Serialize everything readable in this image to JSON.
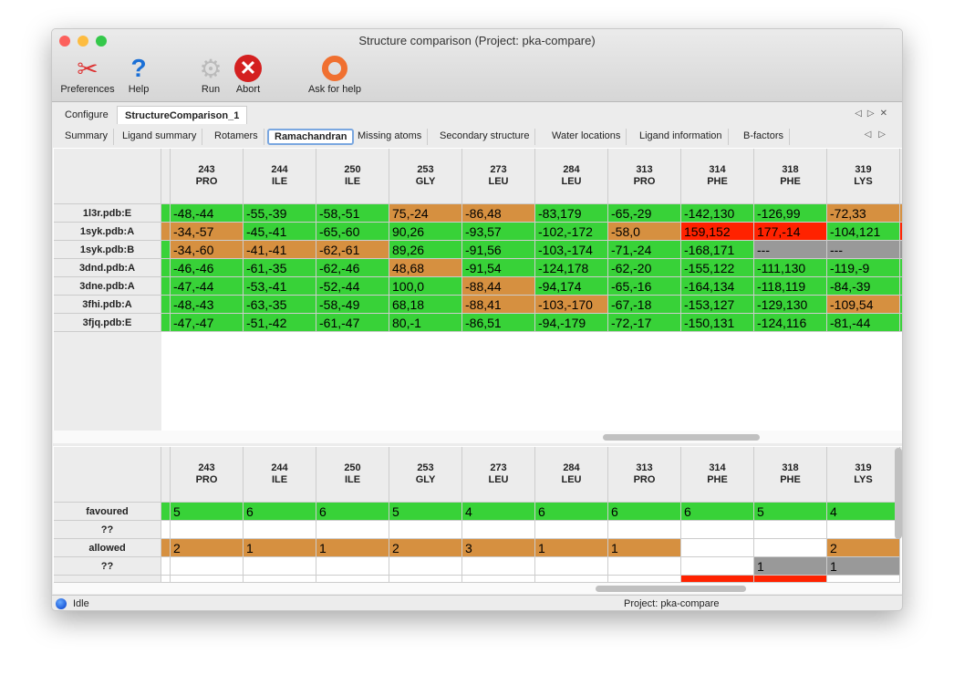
{
  "window": {
    "title": "Structure comparison (Project: pka-compare)"
  },
  "toolbar": [
    {
      "label": "Preferences",
      "icon": "tools-icon"
    },
    {
      "label": "Help",
      "icon": "help-icon"
    },
    {
      "label": "Run",
      "icon": "gear-icon"
    },
    {
      "label": "Abort",
      "icon": "abort-icon"
    },
    {
      "label": "Ask for help",
      "icon": "lifebuoy-icon"
    }
  ],
  "tabs": [
    "Configure",
    "StructureComparison_1"
  ],
  "active_tab": "StructureComparison_1",
  "subtabs": [
    "Summary",
    "Ligand summary",
    "Rotamers",
    "Ramachandran",
    "Missing atoms",
    "Secondary structure",
    "Water locations",
    "Ligand information",
    "B-factors"
  ],
  "active_subtab": "Ramachandran",
  "colors": {
    "favoured": "#38d238",
    "allowed": "#d69040",
    "outlier": "#ff2200",
    "missing": "#999999"
  },
  "columns": [
    {
      "num": "243",
      "res": "PRO"
    },
    {
      "num": "244",
      "res": "ILE"
    },
    {
      "num": "250",
      "res": "ILE"
    },
    {
      "num": "253",
      "res": "GLY"
    },
    {
      "num": "273",
      "res": "LEU"
    },
    {
      "num": "284",
      "res": "LEU"
    },
    {
      "num": "313",
      "res": "PRO"
    },
    {
      "num": "314",
      "res": "PHE"
    },
    {
      "num": "318",
      "res": "PHE"
    },
    {
      "num": "319",
      "res": "LYS"
    }
  ],
  "rows": [
    {
      "name": "1l3r.pdb:E",
      "ind": "g",
      "cells": [
        [
          "-48,-44",
          "g"
        ],
        [
          "-55,-39",
          "g"
        ],
        [
          "-58,-51",
          "g"
        ],
        [
          "75,-24",
          "o"
        ],
        [
          "-86,48",
          "o"
        ],
        [
          "-83,179",
          "g"
        ],
        [
          "-65,-29",
          "g"
        ],
        [
          "-142,130",
          "g"
        ],
        [
          "-126,99",
          "g"
        ],
        [
          "-72,33",
          "o"
        ]
      ],
      "tail": "o"
    },
    {
      "name": "1syk.pdb:A",
      "ind": "o",
      "cells": [
        [
          "-34,-57",
          "o"
        ],
        [
          "-45,-41",
          "g"
        ],
        [
          "-65,-60",
          "g"
        ],
        [
          "90,26",
          "g"
        ],
        [
          "-93,57",
          "g"
        ],
        [
          "-102,-172",
          "g"
        ],
        [
          "-58,0",
          "o"
        ],
        [
          "159,152",
          "r"
        ],
        [
          "177,-14",
          "r"
        ],
        [
          "-104,121",
          "g"
        ]
      ],
      "tail": "r"
    },
    {
      "name": "1syk.pdb:B",
      "ind": "g",
      "cells": [
        [
          "-34,-60",
          "o"
        ],
        [
          "-41,-41",
          "o"
        ],
        [
          "-62,-61",
          "o"
        ],
        [
          "89,26",
          "g"
        ],
        [
          "-91,56",
          "g"
        ],
        [
          "-103,-174",
          "g"
        ],
        [
          "-71,-24",
          "g"
        ],
        [
          "-168,171",
          "g"
        ],
        [
          "---",
          "gy"
        ],
        [
          "---",
          "gy"
        ]
      ],
      "tail": "gy"
    },
    {
      "name": "3dnd.pdb:A",
      "ind": "g",
      "cells": [
        [
          "-46,-46",
          "g"
        ],
        [
          "-61,-35",
          "g"
        ],
        [
          "-62,-46",
          "g"
        ],
        [
          "48,68",
          "o"
        ],
        [
          "-91,54",
          "g"
        ],
        [
          "-124,178",
          "g"
        ],
        [
          "-62,-20",
          "g"
        ],
        [
          "-155,122",
          "g"
        ],
        [
          "-111,130",
          "g"
        ],
        [
          "-119,-9",
          "g"
        ]
      ],
      "tail": "g"
    },
    {
      "name": "3dne.pdb:A",
      "ind": "g",
      "cells": [
        [
          "-47,-44",
          "g"
        ],
        [
          "-53,-41",
          "g"
        ],
        [
          "-52,-44",
          "g"
        ],
        [
          "100,0",
          "g"
        ],
        [
          "-88,44",
          "o"
        ],
        [
          "-94,174",
          "g"
        ],
        [
          "-65,-16",
          "g"
        ],
        [
          "-164,134",
          "g"
        ],
        [
          "-118,119",
          "g"
        ],
        [
          "-84,-39",
          "g"
        ]
      ],
      "tail": "g"
    },
    {
      "name": "3fhi.pdb:A",
      "ind": "g",
      "cells": [
        [
          "-48,-43",
          "g"
        ],
        [
          "-63,-35",
          "g"
        ],
        [
          "-58,-49",
          "g"
        ],
        [
          "68,18",
          "g"
        ],
        [
          "-88,41",
          "o"
        ],
        [
          "-103,-170",
          "o"
        ],
        [
          "-67,-18",
          "g"
        ],
        [
          "-153,127",
          "g"
        ],
        [
          "-129,130",
          "g"
        ],
        [
          "-109,54",
          "o"
        ]
      ],
      "tail": "g"
    },
    {
      "name": "3fjq.pdb:E",
      "ind": "g",
      "cells": [
        [
          "-47,-47",
          "g"
        ],
        [
          "-51,-42",
          "g"
        ],
        [
          "-61,-47",
          "g"
        ],
        [
          "80,-1",
          "g"
        ],
        [
          "-86,51",
          "g"
        ],
        [
          "-94,-179",
          "g"
        ],
        [
          "-72,-17",
          "g"
        ],
        [
          "-150,131",
          "g"
        ],
        [
          "-124,116",
          "g"
        ],
        [
          "-81,-44",
          "g"
        ]
      ],
      "tail": "g"
    }
  ],
  "summary_rows": [
    {
      "name": "favoured",
      "ind": "g",
      "cells": [
        [
          "5",
          "g"
        ],
        [
          "6",
          "g"
        ],
        [
          "6",
          "g"
        ],
        [
          "5",
          "g"
        ],
        [
          "4",
          "g"
        ],
        [
          "6",
          "g"
        ],
        [
          "6",
          "g"
        ],
        [
          "6",
          "g"
        ],
        [
          "5",
          "g"
        ],
        [
          "4",
          "g"
        ]
      ]
    },
    {
      "name": "??",
      "ind": "w",
      "cells": [
        [
          "",
          "w"
        ],
        [
          "",
          "w"
        ],
        [
          "",
          "w"
        ],
        [
          "",
          "w"
        ],
        [
          "",
          "w"
        ],
        [
          "",
          "w"
        ],
        [
          "",
          "w"
        ],
        [
          "",
          "w"
        ],
        [
          "",
          "w"
        ],
        [
          "",
          "w"
        ]
      ]
    },
    {
      "name": "allowed",
      "ind": "o",
      "cells": [
        [
          "2",
          "o"
        ],
        [
          "1",
          "o"
        ],
        [
          "1",
          "o"
        ],
        [
          "2",
          "o"
        ],
        [
          "3",
          "o"
        ],
        [
          "1",
          "o"
        ],
        [
          "1",
          "o"
        ],
        [
          "",
          "w"
        ],
        [
          "",
          "w"
        ],
        [
          "2",
          "o"
        ]
      ]
    },
    {
      "name": "??",
      "ind": "w",
      "cells": [
        [
          "",
          "w"
        ],
        [
          "",
          "w"
        ],
        [
          "",
          "w"
        ],
        [
          "",
          "w"
        ],
        [
          "",
          "w"
        ],
        [
          "",
          "w"
        ],
        [
          "",
          "w"
        ],
        [
          "",
          "w"
        ],
        [
          "1",
          "gy"
        ],
        [
          "1",
          "gy"
        ]
      ]
    },
    {
      "name": "",
      "ind": "w",
      "cells": [
        [
          "",
          "w"
        ],
        [
          "",
          "w"
        ],
        [
          "",
          "w"
        ],
        [
          "",
          "w"
        ],
        [
          "",
          "w"
        ],
        [
          "",
          "w"
        ],
        [
          "",
          "w"
        ],
        [
          "",
          "r"
        ],
        [
          "",
          "r"
        ],
        [
          "",
          "w"
        ]
      ]
    }
  ],
  "status": {
    "state": "Idle",
    "project": "Project: pka-compare"
  }
}
